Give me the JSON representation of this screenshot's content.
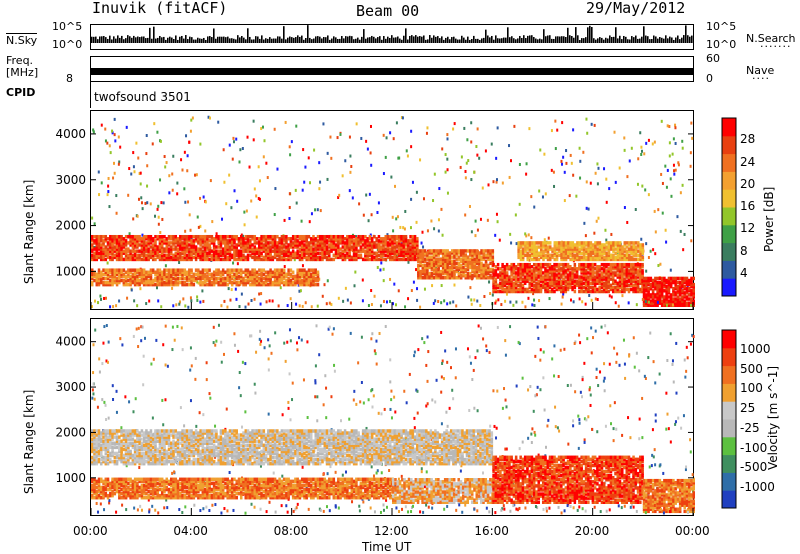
{
  "header": {
    "station": "Inuvik (fitACF)",
    "beam": "Beam 00",
    "date": "29/May/2012"
  },
  "nsky_panel": {
    "left_label": "N.Sky",
    "left_ticks": [
      "10^5",
      "10^0"
    ],
    "right_ticks": [
      "10^5",
      "10^0"
    ],
    "right_label": "N.Search",
    "right_dots": "·······"
  },
  "freq_panel": {
    "left_label_1": "Freq.",
    "left_label_2": "[MHz]",
    "left_ticks": [
      "8"
    ],
    "right_ticks": [
      "60",
      "0"
    ],
    "right_label": "Nave",
    "right_dots": "····"
  },
  "cpid_panel": {
    "label": "CPID",
    "program": "twofsound 3501"
  },
  "chart_data": [
    {
      "type": "heatmap",
      "title": "",
      "ylabel": "Slant Range [km]",
      "xlabel": "",
      "x_ticks": [
        "00:00",
        "04:00",
        "08:00",
        "12:00",
        "16:00",
        "20:00",
        "00:00"
      ],
      "y_ticks": [
        1000,
        2000,
        3000,
        4000
      ],
      "xlim_hours": [
        0,
        24
      ],
      "ylim_km": [
        180,
        4500
      ],
      "colorbar": {
        "label": "Power [dB]",
        "ticks": [
          "28",
          "24",
          "20",
          "16",
          "12",
          "8",
          "4"
        ],
        "colors": [
          "#1a1aff",
          "#2e5aa0",
          "#3a7d5f",
          "#3fa046",
          "#92c62a",
          "#f0c030",
          "#f3a030",
          "#f07020",
          "#e84010",
          "#ff0000"
        ]
      },
      "bands": [
        {
          "t0": 0,
          "t1": 13,
          "r0": 1300,
          "r1": 1800,
          "level": 8
        },
        {
          "t0": 0,
          "t1": 9,
          "r0": 750,
          "r1": 1100,
          "level": 7
        },
        {
          "t0": 13,
          "t1": 16,
          "r0": 900,
          "r1": 1500,
          "level": 7
        },
        {
          "t0": 16,
          "t1": 22,
          "r0": 600,
          "r1": 1200,
          "level": 8
        },
        {
          "t0": 17,
          "t1": 22,
          "r0": 1300,
          "r1": 1700,
          "level": 6
        },
        {
          "t0": 22,
          "t1": 24,
          "r0": 300,
          "r1": 900,
          "level": 9
        }
      ]
    },
    {
      "type": "heatmap",
      "title": "",
      "ylabel": "Slant Range [km]",
      "xlabel": "Time UT",
      "x_ticks": [
        "00:00",
        "04:00",
        "08:00",
        "12:00",
        "16:00",
        "20:00",
        "00:00"
      ],
      "y_ticks": [
        1000,
        2000,
        3000,
        4000
      ],
      "xlim_hours": [
        0,
        24
      ],
      "ylim_km": [
        180,
        4500
      ],
      "colorbar": {
        "label": "Velocity [m s^-1]",
        "ticks": [
          "1000",
          "500",
          "100",
          "25",
          "-25",
          "-100",
          "-500",
          "-1000"
        ],
        "colors": [
          "#2040c0",
          "#2f6ea8",
          "#3f8f5f",
          "#5cc040",
          "#b8b8b8",
          "#c8c8c8",
          "#f0a030",
          "#f07020",
          "#ee4010",
          "#ff0000"
        ]
      },
      "bands": [
        {
          "t0": 0,
          "t1": 16,
          "r0": 1350,
          "r1": 2100,
          "level": 5
        },
        {
          "t0": 0,
          "t1": 12,
          "r0": 600,
          "r1": 1050,
          "level": 7
        },
        {
          "t0": 12,
          "t1": 16,
          "r0": 500,
          "r1": 1000,
          "level": 6
        },
        {
          "t0": 16,
          "t1": 22,
          "r0": 500,
          "r1": 1500,
          "level": 8
        },
        {
          "t0": 22,
          "t1": 24,
          "r0": 300,
          "r1": 1000,
          "level": 7
        }
      ]
    }
  ]
}
